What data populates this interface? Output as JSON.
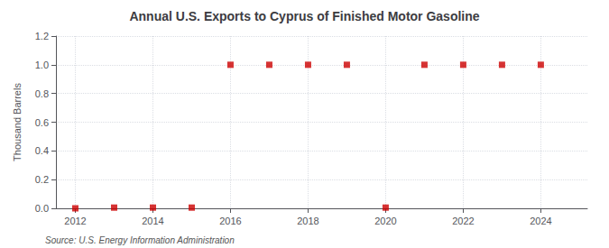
{
  "chart_data": {
    "type": "scatter",
    "title": "Annual U.S. Exports to Cyprus of Finished Motor Gasoline",
    "y_label": "Thousand Barrels",
    "annotations": [
      "Source: U.S. Energy Information Administration"
    ],
    "x": [
      2012,
      2013,
      2014,
      2015,
      2016,
      2017,
      2018,
      2019,
      2020,
      2021,
      2022,
      2023,
      2024
    ],
    "values": [
      0,
      0.005,
      0.005,
      0.005,
      1.0,
      1.0,
      1.0,
      1.0,
      0.005,
      1.0,
      1.0,
      1.0,
      1.0
    ],
    "color": "#cc0000",
    "marker": "square",
    "xlim": [
      2011.5,
      2025.2
    ],
    "xticks": [
      2012,
      2014,
      2016,
      2018,
      2020,
      2022,
      2024
    ],
    "ylim": [
      0,
      1.2
    ],
    "yticks": [
      {
        "value": 0,
        "label": "0.0"
      },
      0.2,
      0.4,
      0.6,
      0.8,
      {
        "value": 1,
        "label": "1.0"
      },
      1.2
    ],
    "grid": true
  }
}
